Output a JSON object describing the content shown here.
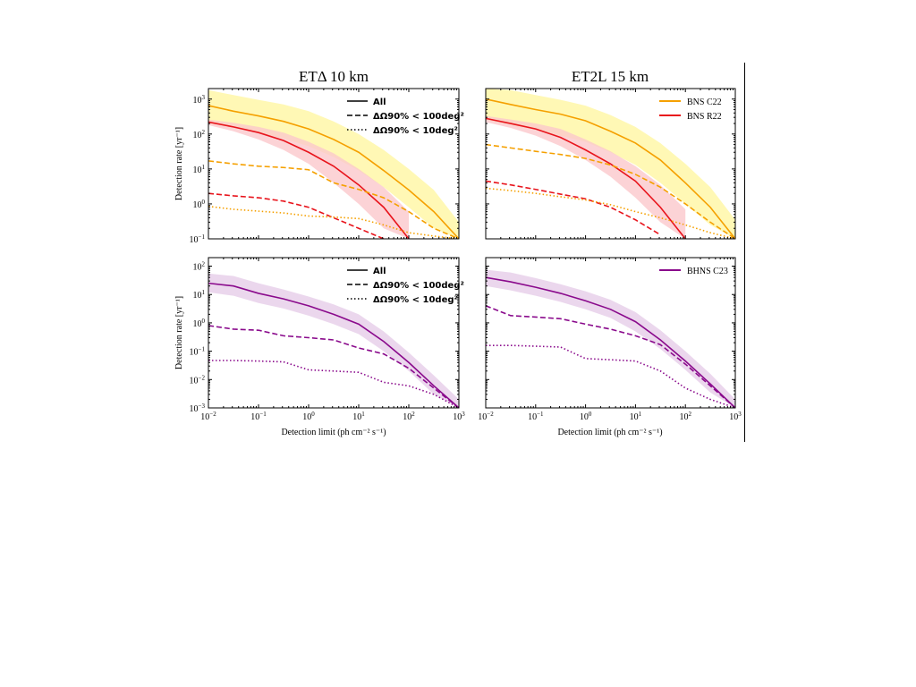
{
  "figure": {
    "panel_titles": [
      "ETΔ 10 km",
      "ET2L 15 km"
    ],
    "ylabel": "Detection rate [yr⁻¹]",
    "xlabel": "Detection limit (ph cm⁻² s⁻¹)",
    "colors": {
      "bns_c22": "#f5a000",
      "bns_c22_band": "#fff7a8",
      "bns_r22": "#e8141c",
      "bns_r22_band": "#fbc8cc",
      "overlap_band": "#fcdca0",
      "bhns_c23": "#8a0a8c",
      "bhns_c23_band": "#e6cde8"
    },
    "style_legend": [
      {
        "label": "All",
        "style": "solid"
      },
      {
        "label": "ΔΩ90% < 100deg²",
        "style": "dashed"
      },
      {
        "label": "ΔΩ90% < 10deg²",
        "style": "dotted"
      }
    ],
    "model_legend_top": [
      {
        "label": "BNS C22",
        "color_key": "bns_c22"
      },
      {
        "label": "BNS R22",
        "color_key": "bns_r22"
      }
    ],
    "model_legend_bottom": [
      {
        "label": "BHNS C23",
        "color_key": "bhns_c23"
      }
    ]
  },
  "chart_data": [
    {
      "type": "line",
      "title": "ETΔ 10 km",
      "panel": "top-left",
      "xscale": "log",
      "yscale": "log",
      "xlim": [
        0.01,
        1000
      ],
      "ylim": [
        0.1,
        2000
      ],
      "xlabel": "",
      "ylabel": "Detection rate [yr⁻¹]",
      "x": [
        0.01,
        0.0316,
        0.1,
        0.316,
        1,
        3.16,
        10,
        31.6,
        100,
        316,
        1000
      ],
      "series": [
        {
          "name": "BNS C22 All",
          "style": "solid",
          "color_key": "bns_c22",
          "values": [
            650,
            450,
            330,
            230,
            140,
            70,
            30,
            9,
            2.5,
            0.6,
            0.1
          ],
          "band_low": [
            200,
            150,
            110,
            75,
            45,
            22,
            9,
            3,
            0.8,
            0.2,
            0.1
          ],
          "band_high": [
            1800,
            1300,
            950,
            700,
            450,
            230,
            100,
            35,
            10,
            2.5,
            0.3
          ]
        },
        {
          "name": "BNS R22 All",
          "style": "solid",
          "color_key": "bns_r22",
          "values": [
            220,
            160,
            110,
            65,
            30,
            12,
            3.5,
            0.8,
            0.1,
            null,
            null
          ],
          "band_low": [
            180,
            120,
            70,
            35,
            14,
            4,
            1,
            0.2,
            0.1,
            null,
            null
          ],
          "band_high": [
            260,
            210,
            160,
            110,
            60,
            28,
            10,
            3,
            0.6,
            0.1,
            null
          ]
        },
        {
          "name": "BNS C22 ΔΩ90% < 100deg²",
          "style": "dashed",
          "color_key": "bns_c22",
          "values": [
            17,
            14,
            12,
            11,
            9.5,
            4,
            2.6,
            1.5,
            0.6,
            0.2,
            0.1
          ]
        },
        {
          "name": "BNS R22 ΔΩ90% < 100deg²",
          "style": "dashed",
          "color_key": "bns_r22",
          "values": [
            2.0,
            1.7,
            1.5,
            1.2,
            0.8,
            0.4,
            0.2,
            0.1,
            null,
            null,
            null
          ]
        },
        {
          "name": "BNS C22 ΔΩ90% < 10deg²",
          "style": "dotted",
          "color_key": "bns_c22",
          "values": [
            0.85,
            0.7,
            0.62,
            0.55,
            0.45,
            0.42,
            0.38,
            0.25,
            0.15,
            0.12,
            0.1
          ]
        }
      ]
    },
    {
      "type": "line",
      "title": "ET2L 15 km",
      "panel": "top-right",
      "xscale": "log",
      "yscale": "log",
      "xlim": [
        0.01,
        1000
      ],
      "ylim": [
        0.1,
        2000
      ],
      "x": [
        0.01,
        0.0316,
        0.1,
        0.316,
        1,
        3.16,
        10,
        31.6,
        100,
        316,
        1000
      ],
      "series": [
        {
          "name": "BNS C22 All",
          "style": "solid",
          "color_key": "bns_c22",
          "values": [
            1000,
            700,
            500,
            370,
            240,
            120,
            55,
            18,
            4,
            0.8,
            0.1
          ],
          "band_low": [
            250,
            180,
            130,
            90,
            60,
            30,
            13,
            4,
            1,
            0.25,
            0.1
          ],
          "band_high": [
            2000,
            1800,
            1300,
            950,
            650,
            350,
            160,
            55,
            14,
            3,
            0.35
          ]
        },
        {
          "name": "BNS R22 All",
          "style": "solid",
          "color_key": "bns_r22",
          "values": [
            280,
            200,
            140,
            80,
            35,
            14,
            4.5,
            0.8,
            0.1,
            null,
            null
          ],
          "band_low": [
            220,
            150,
            90,
            45,
            18,
            6,
            1.5,
            0.3,
            0.1,
            null,
            null
          ],
          "band_high": [
            330,
            260,
            200,
            140,
            70,
            32,
            12,
            3.5,
            0.7,
            0.1,
            null
          ]
        },
        {
          "name": "BNS C22 ΔΩ90% < 100deg²",
          "style": "dashed",
          "color_key": "bns_c22",
          "values": [
            50,
            40,
            32,
            26,
            20,
            13,
            7,
            3,
            1.0,
            0.3,
            0.1
          ]
        },
        {
          "name": "BNS R22 ΔΩ90% < 100deg²",
          "style": "dashed",
          "color_key": "bns_r22",
          "values": [
            4.5,
            3.5,
            2.6,
            1.9,
            1.4,
            0.8,
            0.35,
            0.13,
            null,
            null,
            null
          ]
        },
        {
          "name": "BNS C22 ΔΩ90% < 10deg²",
          "style": "dotted",
          "color_key": "bns_c22",
          "values": [
            2.8,
            2.4,
            2.0,
            1.6,
            1.3,
            0.95,
            0.6,
            0.4,
            0.25,
            0.15,
            0.1
          ]
        }
      ]
    },
    {
      "type": "line",
      "title": "",
      "panel": "bottom-left",
      "xscale": "log",
      "yscale": "log",
      "xlim": [
        0.01,
        1000
      ],
      "ylim": [
        0.001,
        200
      ],
      "xlabel": "Detection limit (ph cm⁻² s⁻¹)",
      "ylabel": "Detection rate [yr⁻¹]",
      "x": [
        0.01,
        0.0316,
        0.1,
        0.316,
        1,
        3.16,
        10,
        31.6,
        100,
        316,
        1000
      ],
      "series": [
        {
          "name": "BHNS C23 All",
          "style": "solid",
          "color_key": "bhns_c23",
          "values": [
            25,
            20,
            11,
            7,
            4,
            2,
            0.9,
            0.22,
            0.04,
            0.006,
            0.001
          ],
          "band_low": [
            12,
            9,
            5,
            3.2,
            1.8,
            0.9,
            0.4,
            0.1,
            0.02,
            0.003,
            0.001
          ],
          "band_high": [
            55,
            45,
            25,
            15,
            8.5,
            4.5,
            2,
            0.5,
            0.09,
            0.014,
            0.002
          ]
        },
        {
          "name": "BHNS C23 ΔΩ90% < 100deg²",
          "style": "dashed",
          "color_key": "bhns_c23",
          "values": [
            0.8,
            0.6,
            0.55,
            0.35,
            0.3,
            0.25,
            0.13,
            0.08,
            0.025,
            0.005,
            0.001
          ]
        },
        {
          "name": "BHNS C23 ΔΩ90% < 10deg²",
          "style": "dotted",
          "color_key": "bhns_c23",
          "values": [
            0.047,
            0.047,
            0.045,
            0.042,
            0.022,
            0.02,
            0.018,
            0.008,
            0.006,
            0.003,
            0.001
          ]
        }
      ]
    },
    {
      "type": "line",
      "title": "",
      "panel": "bottom-right",
      "xscale": "log",
      "yscale": "log",
      "xlim": [
        0.01,
        1000
      ],
      "ylim": [
        0.001,
        200
      ],
      "xlabel": "Detection limit (ph cm⁻² s⁻¹)",
      "ylabel": "",
      "x": [
        0.01,
        0.0316,
        0.1,
        0.316,
        1,
        3.16,
        10,
        31.6,
        100,
        316,
        1000
      ],
      "series": [
        {
          "name": "BHNS C23 All",
          "style": "solid",
          "color_key": "bhns_c23",
          "values": [
            40,
            28,
            18,
            11,
            6,
            3,
            1.1,
            0.25,
            0.045,
            0.007,
            0.001
          ],
          "band_low": [
            20,
            14,
            9,
            5.5,
            3,
            1.5,
            0.5,
            0.12,
            0.022,
            0.0035,
            0.001
          ],
          "band_high": [
            75,
            60,
            38,
            23,
            13,
            6.5,
            2.4,
            0.55,
            0.1,
            0.016,
            0.002
          ]
        },
        {
          "name": "BHNS C23 ΔΩ90% < 100deg²",
          "style": "dashed",
          "color_key": "bhns_c23",
          "values": [
            4,
            1.8,
            1.6,
            1.4,
            0.9,
            0.6,
            0.35,
            0.17,
            0.035,
            0.006,
            0.001
          ]
        },
        {
          "name": "BHNS C23 ΔΩ90% < 10deg²",
          "style": "dotted",
          "color_key": "bhns_c23",
          "values": [
            0.16,
            0.16,
            0.15,
            0.14,
            0.055,
            0.05,
            0.045,
            0.02,
            0.005,
            0.002,
            0.001
          ]
        }
      ]
    }
  ]
}
